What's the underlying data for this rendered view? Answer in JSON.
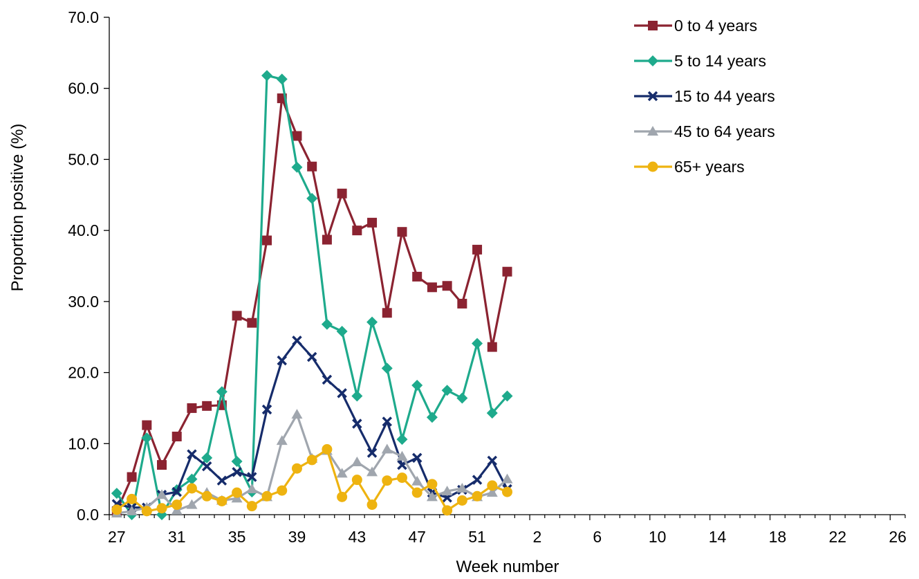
{
  "chart_data": {
    "type": "line",
    "xlabel": "Week number",
    "ylabel": "Proportion positive (%)",
    "ylim": [
      0,
      70
    ],
    "yticks": [
      "0.0",
      "10.0",
      "20.0",
      "30.0",
      "40.0",
      "50.0",
      "60.0",
      "70.0"
    ],
    "x_categories": [
      "27",
      "28",
      "29",
      "30",
      "31",
      "32",
      "33",
      "34",
      "35",
      "36",
      "37",
      "38",
      "39",
      "40",
      "41",
      "42",
      "43",
      "44",
      "45",
      "46",
      "47",
      "48",
      "49",
      "50",
      "51",
      "52",
      "53",
      "1",
      "2",
      "3",
      "4",
      "5",
      "6",
      "7",
      "8",
      "9",
      "10",
      "11",
      "12",
      "13",
      "14",
      "15",
      "16",
      "17",
      "18",
      "19",
      "20",
      "21",
      "22",
      "23",
      "24",
      "25",
      "26"
    ],
    "x_tick_labels": [
      "27",
      "31",
      "35",
      "39",
      "43",
      "47",
      "51",
      "2",
      "6",
      "10",
      "14",
      "18",
      "22",
      "26"
    ],
    "grid": false,
    "legend_position": "top-right",
    "series": [
      {
        "name": "0 to 4 years",
        "color": "#8B2331",
        "marker": "square",
        "values": [
          0.5,
          5.3,
          12.6,
          7.0,
          11.0,
          15.0,
          15.3,
          15.4,
          28.0,
          27.0,
          38.6,
          58.6,
          53.3,
          49.0,
          38.7,
          45.2,
          40.0,
          41.1,
          28.4,
          39.8,
          33.5,
          32.0,
          32.2,
          29.7,
          37.3,
          23.6,
          34.2
        ]
      },
      {
        "name": "5 to 14 years",
        "color": "#1EAA8C",
        "marker": "diamond",
        "values": [
          3.0,
          0.0,
          10.8,
          0.0,
          3.5,
          5.0,
          8.0,
          17.3,
          7.5,
          3.2,
          61.8,
          61.3,
          48.9,
          44.5,
          26.8,
          25.8,
          16.7,
          27.1,
          20.6,
          10.6,
          18.2,
          13.7,
          17.5,
          16.4,
          24.1,
          14.3,
          16.7
        ]
      },
      {
        "name": "15 to 44 years",
        "color": "#162C6B",
        "marker": "x",
        "values": [
          1.5,
          1.0,
          1.0,
          2.8,
          3.2,
          8.5,
          6.8,
          4.8,
          6.0,
          5.3,
          14.8,
          21.7,
          24.5,
          22.2,
          19.0,
          17.1,
          12.8,
          8.7,
          13.1,
          7.0,
          8.0,
          3.1,
          2.4,
          3.5,
          4.9,
          7.6,
          3.6
        ]
      },
      {
        "name": "45 to 64 years",
        "color": "#A0A6AE",
        "marker": "triangle",
        "values": [
          0.2,
          0.5,
          1.0,
          2.8,
          0.6,
          1.4,
          3.1,
          2.0,
          2.3,
          3.6,
          2.5,
          10.4,
          14.1,
          7.9,
          9.0,
          5.8,
          7.4,
          6.0,
          9.2,
          8.2,
          4.7,
          2.5,
          3.3,
          3.7,
          2.5,
          3.1,
          5.0
        ]
      },
      {
        "name": "65+ years",
        "color": "#EEB310",
        "marker": "circle",
        "values": [
          0.7,
          2.2,
          0.5,
          0.9,
          1.4,
          3.7,
          2.6,
          1.9,
          3.1,
          1.2,
          2.6,
          3.4,
          6.5,
          7.7,
          9.2,
          2.5,
          4.9,
          1.4,
          4.8,
          5.2,
          3.1,
          4.3,
          0.6,
          2.0,
          2.6,
          4.1,
          3.2
        ]
      }
    ]
  }
}
